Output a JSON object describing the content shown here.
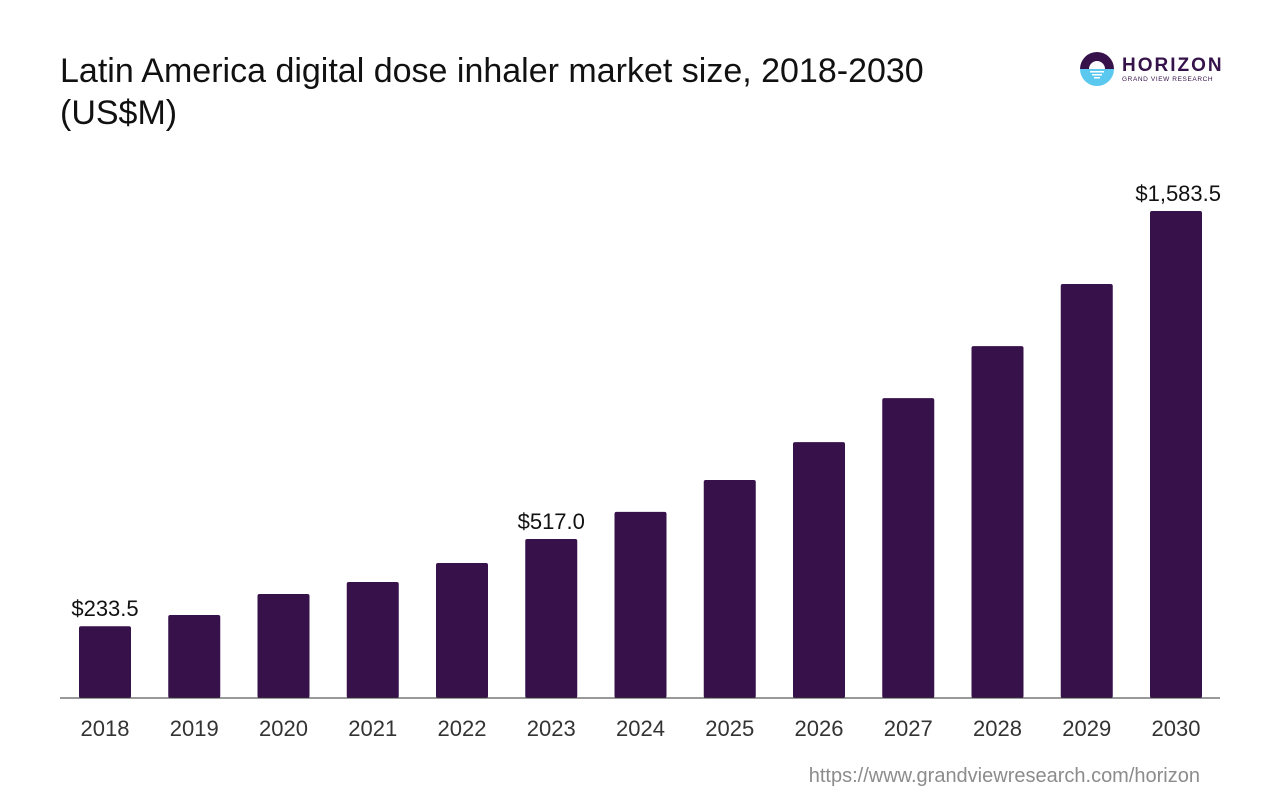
{
  "title": "Latin America digital dose inhaler market size, 2018-2030 (US$M)",
  "logo": {
    "main": "HORIZON",
    "sub": "GRAND VIEW RESEARCH"
  },
  "source": "https://www.grandviewresearch.com/horizon",
  "colors": {
    "bar": "#36114a",
    "logo_top": "#36114a",
    "logo_bottom": "#5bc8f0"
  },
  "chart_data": {
    "type": "bar",
    "title": "Latin America digital dose inhaler market size, 2018-2030 (US$M)",
    "xlabel": "",
    "ylabel": "",
    "categories": [
      "2018",
      "2019",
      "2020",
      "2021",
      "2022",
      "2023",
      "2024",
      "2025",
      "2026",
      "2027",
      "2028",
      "2029",
      "2030"
    ],
    "values": [
      233.5,
      270,
      338,
      377,
      439,
      517.0,
      605,
      709,
      832,
      975,
      1144,
      1346,
      1583.5
    ],
    "data_labels": {
      "0": "$233.5",
      "5": "$517.0",
      "12": "$1,583.5"
    },
    "ylim": [
      0,
      1583.5
    ],
    "grid": false
  }
}
